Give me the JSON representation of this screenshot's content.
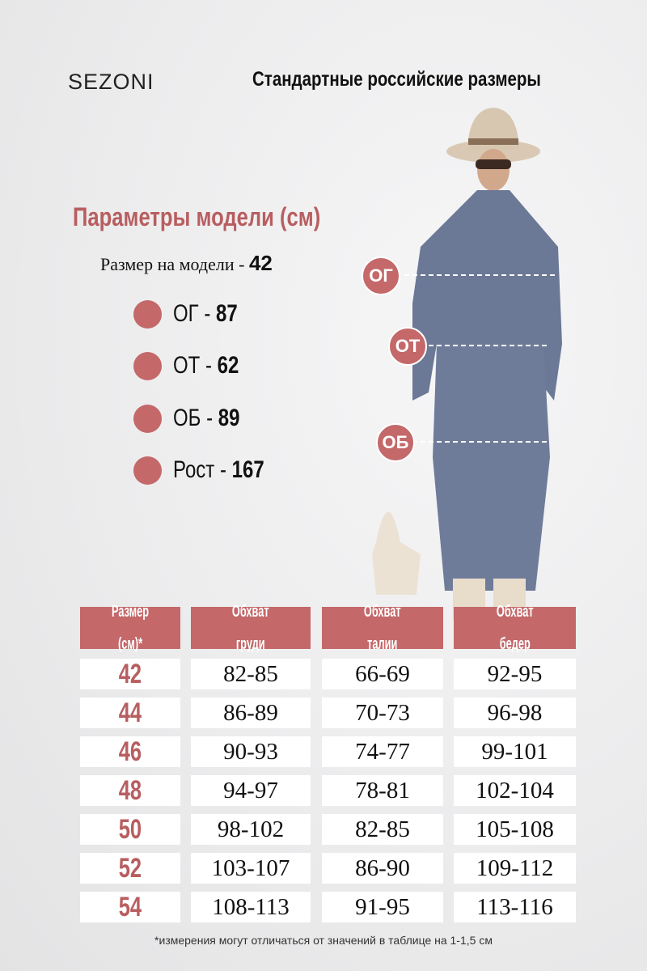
{
  "brand": "SEZONI",
  "title": "Стандартные российские размеры",
  "params": {
    "title": "Параметры модели (см)",
    "model_size_label": "Размер на модели - ",
    "model_size": "42",
    "items": [
      {
        "label": "ОГ - ",
        "value": "87"
      },
      {
        "label": "ОТ - ",
        "value": "62"
      },
      {
        "label": "ОБ - ",
        "value": "89"
      },
      {
        "label": "Рост - ",
        "value": "167"
      }
    ]
  },
  "figure_marks": [
    "ОГ",
    "ОТ",
    "ОБ"
  ],
  "table": {
    "headers": [
      [
        "Размер",
        "(см)*"
      ],
      [
        "Обхват",
        "груди"
      ],
      [
        "Обхват",
        "талии"
      ],
      [
        "Обхват",
        "бедер"
      ]
    ],
    "rows": [
      [
        "42",
        "82-85",
        "66-69",
        "92-95"
      ],
      [
        "44",
        "86-89",
        "70-73",
        "96-98"
      ],
      [
        "46",
        "90-93",
        "74-77",
        "99-101"
      ],
      [
        "48",
        "94-97",
        "78-81",
        "102-104"
      ],
      [
        "50",
        "98-102",
        "82-85",
        "105-108"
      ],
      [
        "52",
        "103-107",
        "86-90",
        "109-112"
      ],
      [
        "54",
        "108-113",
        "91-95",
        "113-116"
      ]
    ]
  },
  "note": "*измерения могут отличаться от значений в таблице на 1-1,5 см",
  "colors": {
    "accent": "#c4686a",
    "text": "#111111"
  }
}
